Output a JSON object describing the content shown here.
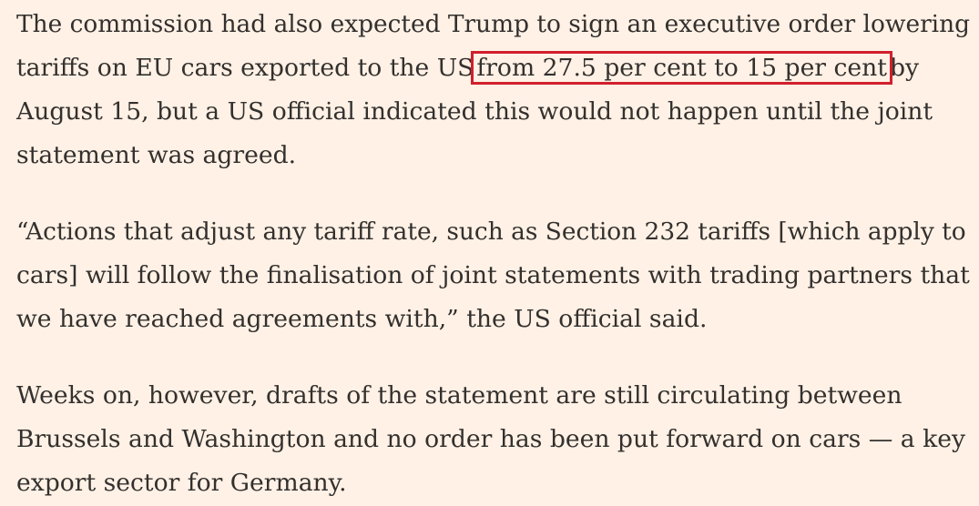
{
  "article": {
    "paragraphs": [
      {
        "lines": [
          {
            "before": "The commission had also expected Trump to sign an executive order lowering"
          },
          {
            "before": "tariffs on EU cars exported to the US",
            "highlight": "from 27.5 per cent to 15 per cent",
            "after": "by"
          },
          {
            "before": "August 15, but a US official indicated this would not happen until the joint"
          },
          {
            "before": "statement was agreed."
          }
        ]
      },
      {
        "lines": [
          {
            "before": "“Actions that adjust any tariff rate, such as Section 232 tariffs [which apply to"
          },
          {
            "before": "cars] will follow the finalisation of joint statements with trading partners that"
          },
          {
            "before": "we have reached agreements with,” the US official said."
          }
        ]
      },
      {
        "lines": [
          {
            "before": "Weeks on, however, drafts of the statement are still circulating between"
          },
          {
            "before": "Brussels and Washington and no order has been put forward on cars — a key"
          },
          {
            "before": "export sector for Germany."
          }
        ]
      }
    ],
    "highlight_color": "#d11f2d",
    "background_color": "#fff1e5",
    "text_color": "#33302e"
  }
}
